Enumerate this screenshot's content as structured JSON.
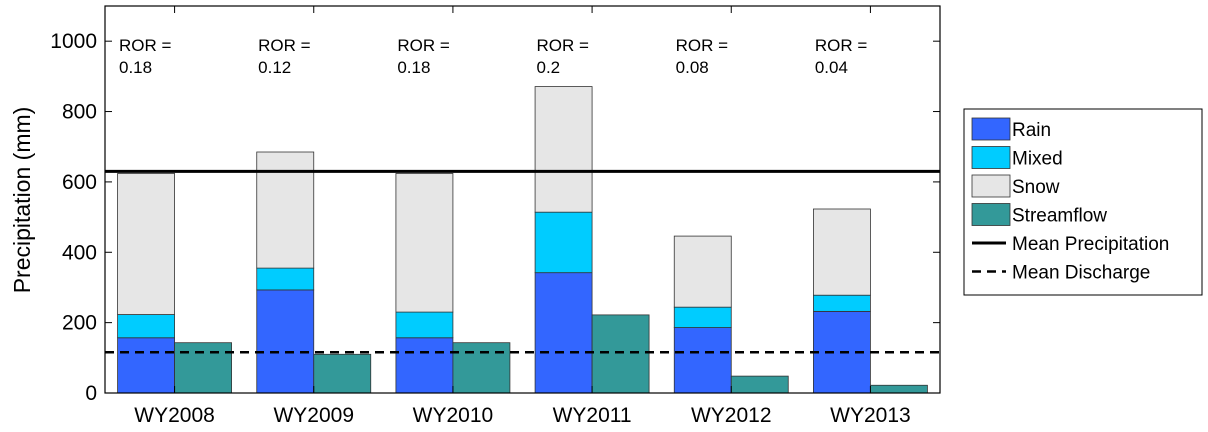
{
  "chart_data": {
    "type": "bar",
    "categories": [
      "WY2008",
      "WY2009",
      "WY2010",
      "WY2011",
      "WY2012",
      "WY2013"
    ],
    "ylabel": "Precipitation (mm)",
    "xlabel": "",
    "ylim": [
      0,
      1100
    ],
    "yticks": [
      0,
      200,
      400,
      600,
      800,
      1000
    ],
    "series": [
      {
        "name": "Rain",
        "stack": "precipitation",
        "color": "#3366ff",
        "values": [
          157,
          293,
          157,
          342,
          186,
          232
        ]
      },
      {
        "name": "Mixed",
        "stack": "precipitation",
        "color": "#00ccff",
        "values": [
          66,
          62,
          73,
          172,
          58,
          46
        ]
      },
      {
        "name": "Snow",
        "stack": "precipitation",
        "color": "#e6e6e6",
        "values": [
          401,
          330,
          394,
          357,
          202,
          245
        ]
      },
      {
        "name": "Streamflow",
        "stack": "discharge",
        "color": "#339999",
        "values": [
          143,
          110,
          143,
          222,
          48,
          22
        ]
      }
    ],
    "reference_lines": [
      {
        "name": "Mean Precipitation",
        "value": 630,
        "style": "solid"
      },
      {
        "name": "Mean Discharge",
        "value": 116,
        "style": "dashed"
      }
    ],
    "annotations": [
      {
        "category": "WY2008",
        "line1": "ROR =",
        "line2": "0.18"
      },
      {
        "category": "WY2009",
        "line1": "ROR =",
        "line2": "0.12"
      },
      {
        "category": "WY2010",
        "line1": "ROR =",
        "line2": "0.18"
      },
      {
        "category": "WY2011",
        "line1": "ROR =",
        "line2": " 0.2"
      },
      {
        "category": "WY2012",
        "line1": "ROR =",
        "line2": "0.08"
      },
      {
        "category": "WY2013",
        "line1": "ROR =",
        "line2": "0.04"
      }
    ],
    "legend": {
      "position": "right",
      "entries": [
        "Rain",
        "Mixed",
        "Snow",
        "Streamflow",
        "Mean Precipitation",
        "Mean Discharge"
      ]
    }
  }
}
